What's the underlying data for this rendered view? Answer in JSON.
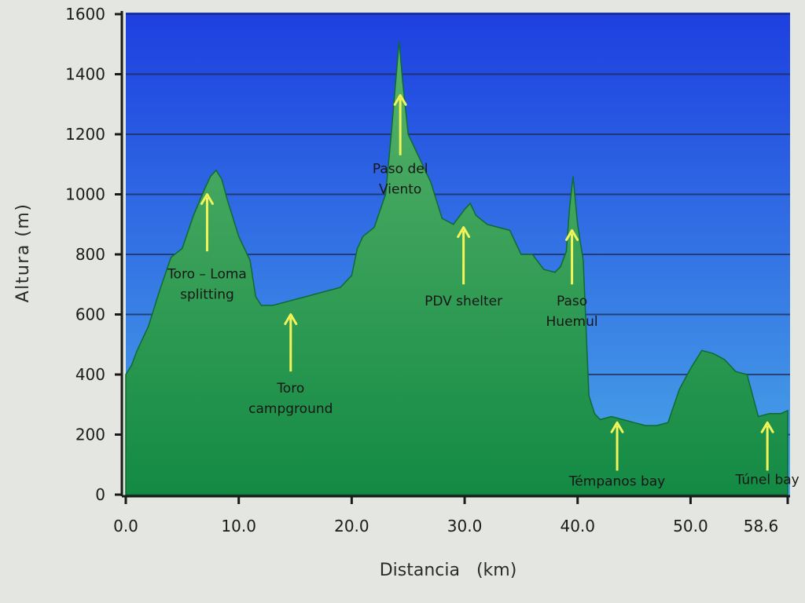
{
  "chart_data": {
    "type": "area",
    "xlabel": "Distancia   (km)",
    "ylabel": "Altura (m)",
    "xlim": [
      0,
      58.6
    ],
    "ylim": [
      0,
      1600
    ],
    "x_ticks": [
      0,
      10,
      20,
      30,
      40,
      50,
      58.6
    ],
    "x_tick_labels": [
      "0.0",
      "10.0",
      "20.0",
      "30.0",
      "40.0",
      "50.0",
      "58.6"
    ],
    "y_ticks": [
      0,
      200,
      400,
      600,
      800,
      1000,
      1200,
      1400,
      1600
    ],
    "y_tick_labels": [
      "0",
      "200",
      "400",
      "600",
      "800",
      "1000",
      "1200",
      "1400",
      "1600"
    ],
    "grid": true,
    "colors": {
      "sky_top": "#1d3fe0",
      "sky_bottom": "#4aa8e8",
      "fill_top": "#59b36a",
      "fill_bottom": "#138a44",
      "arrow": "#f3f35a"
    },
    "x": [
      0,
      0.5,
      1,
      2,
      3,
      4,
      5,
      6,
      7,
      7.5,
      8,
      8.5,
      9,
      10,
      11,
      11.5,
      12,
      13,
      14,
      15,
      16,
      17,
      18,
      19,
      20,
      20.5,
      21,
      22,
      23,
      23.5,
      24,
      24.2,
      24.5,
      25,
      26,
      27,
      28,
      29,
      30,
      30.5,
      31,
      32,
      33,
      34,
      35,
      36,
      37,
      38,
      38.5,
      39,
      39.3,
      39.6,
      40,
      40.5,
      41,
      41.5,
      42,
      43,
      44,
      45,
      46,
      47,
      48,
      49,
      50,
      51,
      52,
      53,
      54,
      55,
      56,
      57,
      58,
      58.6
    ],
    "y": [
      400,
      430,
      480,
      560,
      680,
      790,
      820,
      930,
      1020,
      1060,
      1080,
      1050,
      980,
      860,
      780,
      660,
      630,
      630,
      640,
      650,
      660,
      670,
      680,
      690,
      730,
      820,
      860,
      890,
      1000,
      1200,
      1420,
      1510,
      1380,
      1200,
      1120,
      1040,
      920,
      900,
      950,
      970,
      930,
      900,
      890,
      880,
      800,
      800,
      750,
      740,
      760,
      810,
      960,
      1060,
      900,
      780,
      330,
      270,
      250,
      260,
      250,
      240,
      230,
      230,
      240,
      350,
      420,
      480,
      470,
      450,
      410,
      400,
      260,
      270,
      270,
      280
    ],
    "annotations": [
      {
        "lines": [
          "Toro – Loma",
          "splitting"
        ],
        "x": 7.2,
        "arrow_top": 1000,
        "arrow_bottom": 810,
        "text_y": 720,
        "align": "center"
      },
      {
        "lines": [
          "Toro",
          "campground"
        ],
        "x": 14.6,
        "arrow_top": 600,
        "arrow_bottom": 410,
        "text_y": 340,
        "align": "center"
      },
      {
        "lines": [
          "Paso del",
          "Viento"
        ],
        "x": 24.3,
        "arrow_top": 1330,
        "arrow_bottom": 1130,
        "text_y": 1070,
        "align": "center"
      },
      {
        "lines": [
          "PDV shelter"
        ],
        "x": 29.9,
        "arrow_top": 890,
        "arrow_bottom": 700,
        "text_y": 630,
        "align": "center"
      },
      {
        "lines": [
          "Paso",
          "Huemul"
        ],
        "x": 39.5,
        "arrow_top": 880,
        "arrow_bottom": 700,
        "text_y": 630,
        "align": "center"
      },
      {
        "lines": [
          "Témpanos bay"
        ],
        "x": 43.5,
        "arrow_top": 240,
        "arrow_bottom": 80,
        "text_y": 30,
        "align": "center"
      },
      {
        "lines": [
          "Túnel bay"
        ],
        "x": 56.8,
        "arrow_top": 240,
        "arrow_bottom": 80,
        "text_y": 35,
        "align": "center"
      }
    ]
  }
}
